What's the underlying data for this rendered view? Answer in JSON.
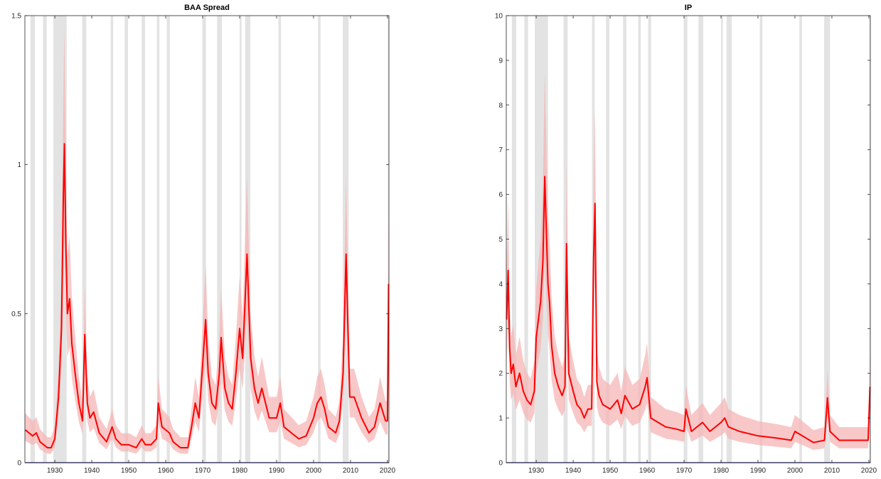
{
  "colors": {
    "recession_shading": "#e3e3e3",
    "line": "#ff0000",
    "band": "#f6b5b5",
    "axis": "#262626",
    "zero_line": "#00007f"
  },
  "recession_bands": [
    [
      1923.4,
      1924.6
    ],
    [
      1926.8,
      1927.8
    ],
    [
      1929.6,
      1933.2
    ],
    [
      1937.4,
      1938.5
    ],
    [
      1945.1,
      1945.8
    ],
    [
      1948.9,
      1949.8
    ],
    [
      1953.5,
      1954.4
    ],
    [
      1957.6,
      1958.3
    ],
    [
      1960.3,
      1961.1
    ],
    [
      1969.9,
      1970.9
    ],
    [
      1973.9,
      1975.2
    ],
    [
      1980.0,
      1980.5
    ],
    [
      1981.5,
      1982.9
    ],
    [
      1990.5,
      1991.2
    ],
    [
      2001.2,
      2001.9
    ],
    [
      2007.9,
      2009.5
    ],
    [
      2020.1,
      2020.4
    ]
  ],
  "chart_data": [
    {
      "type": "line",
      "title": "BAA Spread",
      "xlim": [
        1921.9,
        2020.4
      ],
      "ylim": [
        0,
        1.5
      ],
      "xticks": [
        1930,
        1940,
        1950,
        1960,
        1970,
        1980,
        1990,
        2000,
        2010,
        2020
      ],
      "xtick_labels": [
        "1930",
        "1940",
        "1950",
        "1960",
        "1970",
        "1980",
        "1990",
        "2000",
        "2010",
        "2020"
      ],
      "yticks": [
        0,
        0.5,
        1,
        1.5
      ],
      "ytick_labels": [
        "0",
        "0.5",
        "1",
        "1.5"
      ],
      "grid": false,
      "series": [
        {
          "x": [
            1922,
            1924,
            1925,
            1926,
            1927,
            1928,
            1929,
            1930,
            1931,
            1931.8,
            1932.3,
            1932.6,
            1933,
            1933.4,
            1934,
            1934.6,
            1935.5,
            1936.5,
            1937.5,
            1938.1,
            1938.8,
            1939.5,
            1940.5,
            1942,
            1944,
            1945.5,
            1946.5,
            1948,
            1950,
            1952,
            1953.5,
            1954.5,
            1956,
            1957.5,
            1958,
            1959,
            1960,
            1961,
            1962,
            1964,
            1966,
            1967,
            1968,
            1969,
            1970,
            1970.8,
            1971.5,
            1972.5,
            1973.5,
            1974.5,
            1975,
            1976,
            1977,
            1978,
            1979,
            1980,
            1980.8,
            1981.5,
            1982,
            1982.5,
            1983,
            1984,
            1985,
            1986,
            1987,
            1988,
            1990,
            1991,
            1992,
            1994,
            1996,
            1998,
            2000,
            2001,
            2002,
            2003,
            2004,
            2006,
            2007,
            2008,
            2008.8,
            2009.2,
            2009.8,
            2011,
            2013,
            2015,
            2016.5,
            2018,
            2019.5,
            2020,
            2020.3
          ],
          "y": [
            0.11,
            0.09,
            0.1,
            0.07,
            0.06,
            0.05,
            0.05,
            0.08,
            0.22,
            0.45,
            0.9,
            1.07,
            0.72,
            0.5,
            0.55,
            0.4,
            0.3,
            0.2,
            0.14,
            0.43,
            0.2,
            0.15,
            0.17,
            0.1,
            0.07,
            0.12,
            0.08,
            0.06,
            0.06,
            0.05,
            0.08,
            0.06,
            0.06,
            0.08,
            0.2,
            0.12,
            0.11,
            0.1,
            0.07,
            0.05,
            0.05,
            0.12,
            0.2,
            0.15,
            0.33,
            0.48,
            0.3,
            0.2,
            0.18,
            0.3,
            0.42,
            0.25,
            0.2,
            0.18,
            0.3,
            0.45,
            0.35,
            0.55,
            0.7,
            0.52,
            0.35,
            0.25,
            0.2,
            0.25,
            0.2,
            0.15,
            0.15,
            0.2,
            0.12,
            0.1,
            0.08,
            0.09,
            0.15,
            0.2,
            0.22,
            0.18,
            0.12,
            0.1,
            0.14,
            0.3,
            0.7,
            0.5,
            0.22,
            0.22,
            0.15,
            0.1,
            0.12,
            0.2,
            0.14,
            0.14,
            0.6
          ]
        }
      ]
    },
    {
      "type": "line",
      "title": "IP",
      "xlim": [
        1921.9,
        2020.4
      ],
      "ylim": [
        0,
        10
      ],
      "xticks": [
        1930,
        1940,
        1950,
        1960,
        1970,
        1980,
        1990,
        2000,
        2010,
        2020
      ],
      "xtick_labels": [
        "1930",
        "1940",
        "1950",
        "1960",
        "1970",
        "1980",
        "1990",
        "2000",
        "2010",
        "2020"
      ],
      "yticks": [
        0,
        1,
        2,
        3,
        4,
        5,
        6,
        7,
        8,
        9,
        10
      ],
      "ytick_labels": [
        "0",
        "1",
        "2",
        "3",
        "4",
        "5",
        "6",
        "7",
        "8",
        "9",
        "10"
      ],
      "grid": false,
      "series": [
        {
          "x": [
            1922,
            1922.4,
            1922.8,
            1923.2,
            1923.8,
            1924.5,
            1925.5,
            1926.5,
            1927.5,
            1928.5,
            1929.5,
            1930,
            1930.6,
            1931.2,
            1931.8,
            1932.3,
            1932.8,
            1933.2,
            1933.6,
            1934.2,
            1935,
            1936,
            1937,
            1937.8,
            1938.2,
            1938.8,
            1940,
            1941,
            1942,
            1943,
            1944,
            1945,
            1945.5,
            1945.9,
            1946.4,
            1947,
            1948,
            1950,
            1952,
            1953,
            1954,
            1956,
            1958,
            1959.5,
            1960,
            1961,
            1963,
            1965,
            1968,
            1970,
            1970.5,
            1972,
            1975,
            1977,
            1980,
            1981,
            1982,
            1985,
            1990,
            1995,
            1999,
            2000,
            2005,
            2008,
            2008.8,
            2009.5,
            2012,
            2016,
            2019.8,
            2020.3
          ],
          "y": [
            3.2,
            4.3,
            2.6,
            2.0,
            2.2,
            1.7,
            2.0,
            1.6,
            1.4,
            1.3,
            1.6,
            2.8,
            3.2,
            3.6,
            4.5,
            6.4,
            5.0,
            4.0,
            3.6,
            2.6,
            2.0,
            1.7,
            1.5,
            1.7,
            4.9,
            2.0,
            1.6,
            1.3,
            1.2,
            1.0,
            1.2,
            1.2,
            4.5,
            5.8,
            1.8,
            1.5,
            1.3,
            1.2,
            1.4,
            1.1,
            1.5,
            1.2,
            1.3,
            1.7,
            1.9,
            1.0,
            0.9,
            0.8,
            0.75,
            0.7,
            1.2,
            0.7,
            0.9,
            0.7,
            0.9,
            1.0,
            0.8,
            0.7,
            0.6,
            0.55,
            0.5,
            0.7,
            0.45,
            0.5,
            1.45,
            0.7,
            0.5,
            0.5,
            0.5,
            1.7
          ]
        }
      ]
    }
  ]
}
